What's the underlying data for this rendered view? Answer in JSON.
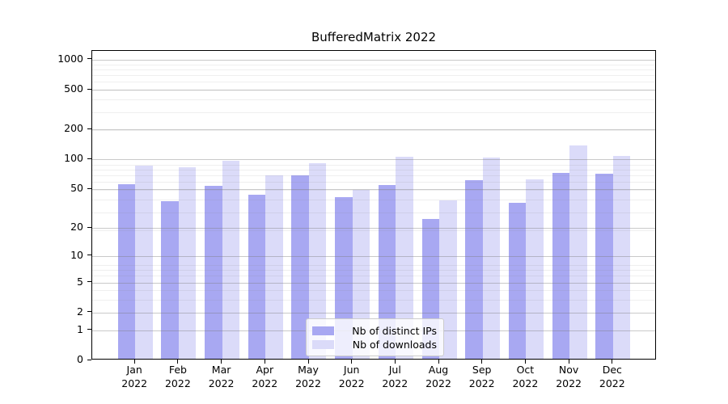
{
  "chart_data": {
    "type": "bar",
    "title": "BufferedMatrix 2022",
    "categories": [
      "Jan 2022",
      "Feb 2022",
      "Mar 2022",
      "Apr 2022",
      "May 2022",
      "Jun 2022",
      "Jul 2022",
      "Aug 2022",
      "Sep 2022",
      "Oct 2022",
      "Nov 2022",
      "Dec 2022"
    ],
    "months": [
      "Jan",
      "Feb",
      "Mar",
      "Apr",
      "May",
      "Jun",
      "Jul",
      "Aug",
      "Sep",
      "Oct",
      "Nov",
      "Dec"
    ],
    "year": "2022",
    "series": [
      {
        "key": "distinct-ips",
        "name": "Nb of distinct IPs",
        "color": "#a8a8f2",
        "values": [
          54,
          36,
          52,
          42,
          67,
          40,
          53,
          24,
          60,
          35,
          70,
          69
        ]
      },
      {
        "key": "downloads",
        "name": "Nb of downloads",
        "color": "#dbdbf9",
        "values": [
          84,
          80,
          94,
          66,
          88,
          47,
          102,
          37,
          100,
          61,
          133,
          105
        ]
      }
    ],
    "xlabel": "",
    "ylabel": "",
    "y_ticks": [
      1000,
      500,
      200,
      100,
      50,
      20,
      10,
      5,
      2,
      1,
      0
    ],
    "y_scale": "log10(value+1)",
    "ylim": [
      0,
      1221
    ],
    "grid": true,
    "legend_position": "lower center"
  }
}
